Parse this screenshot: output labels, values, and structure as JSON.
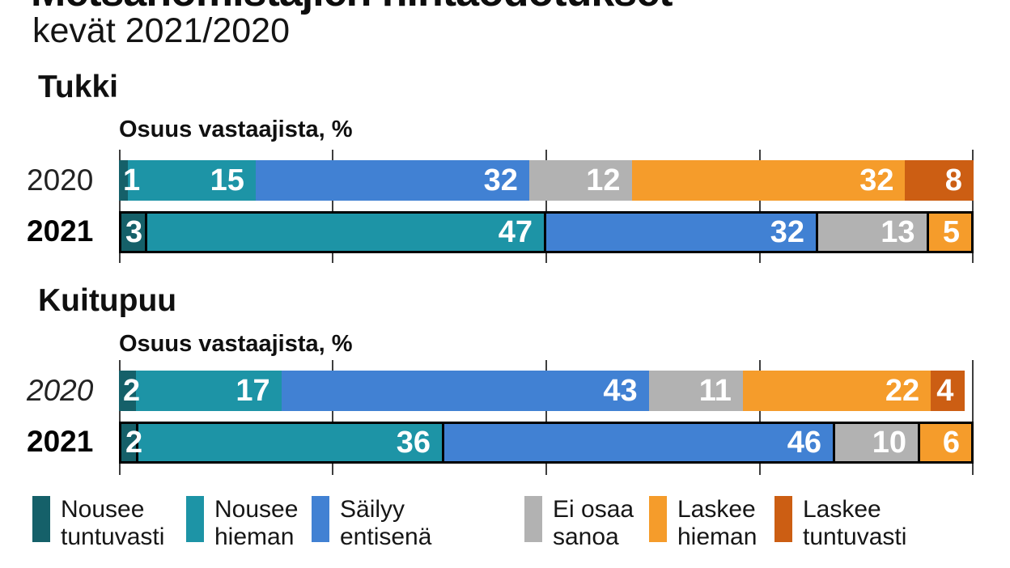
{
  "title": "Metsänomistajien hintaodotukset",
  "subtitle": "kevät 2021/2020",
  "legend": [
    {
      "line1": "Nousee",
      "line2": "tuntuvasti",
      "color": "#156069"
    },
    {
      "line1": "Nousee",
      "line2": "hieman",
      "color": "#1d94a6"
    },
    {
      "line1": "Säilyy",
      "line2": "entisenä",
      "color": "#4181d3"
    },
    {
      "line1": "Ei osaa",
      "line2": "sanoa",
      "color": "#b2b2b2"
    },
    {
      "line1": "Laskee",
      "line2": "hieman",
      "color": "#f59c2b"
    },
    {
      "line1": "Laskee",
      "line2": "tuntuvasti",
      "color": "#cc5e13"
    }
  ],
  "chart_data": [
    {
      "type": "bar",
      "stacked": true,
      "orientation": "horizontal",
      "title": "Tukki",
      "xlabel": "Osuus vastaajista, %",
      "xlim": [
        0,
        100
      ],
      "ticks": [
        0,
        25,
        50,
        75,
        100
      ],
      "grid": true,
      "rows": [
        {
          "category": "2020",
          "style": "year-light",
          "outlined": false
        },
        {
          "category": "2021",
          "style": "year-bold",
          "outlined": true
        }
      ],
      "series": [
        {
          "name": "Nousee tuntuvasti",
          "color": "#156069",
          "values": [
            1,
            3
          ]
        },
        {
          "name": "Nousee hieman",
          "color": "#1d94a6",
          "values": [
            15,
            47
          ]
        },
        {
          "name": "Säilyy entisenä",
          "color": "#4181d3",
          "values": [
            32,
            32
          ]
        },
        {
          "name": "Ei osaa sanoa",
          "color": "#b2b2b2",
          "values": [
            12,
            13
          ]
        },
        {
          "name": "Laskee hieman",
          "color": "#f59c2b",
          "values": [
            32,
            5
          ]
        },
        {
          "name": "Laskee tuntuvasti",
          "color": "#cc5e13",
          "values": [
            8,
            0
          ]
        }
      ]
    },
    {
      "type": "bar",
      "stacked": true,
      "orientation": "horizontal",
      "title": "Kuitupuu",
      "xlabel": "Osuus vastaajista, %",
      "xlim": [
        0,
        100
      ],
      "ticks": [
        0,
        25,
        50,
        75,
        100
      ],
      "grid": true,
      "rows": [
        {
          "category": "2020",
          "style": "year-light-italic",
          "outlined": false
        },
        {
          "category": "2021",
          "style": "year-bold",
          "outlined": true
        }
      ],
      "series": [
        {
          "name": "Nousee tuntuvasti",
          "color": "#156069",
          "values": [
            2,
            2
          ]
        },
        {
          "name": "Nousee hieman",
          "color": "#1d94a6",
          "values": [
            17,
            36
          ]
        },
        {
          "name": "Säilyy entisenä",
          "color": "#4181d3",
          "values": [
            43,
            46
          ]
        },
        {
          "name": "Ei osaa sanoa",
          "color": "#b2b2b2",
          "values": [
            11,
            10
          ]
        },
        {
          "name": "Laskee hieman",
          "color": "#f59c2b",
          "values": [
            22,
            6
          ]
        },
        {
          "name": "Laskee tuntuvasti",
          "color": "#cc5e13",
          "values": [
            4,
            0
          ]
        }
      ]
    }
  ]
}
